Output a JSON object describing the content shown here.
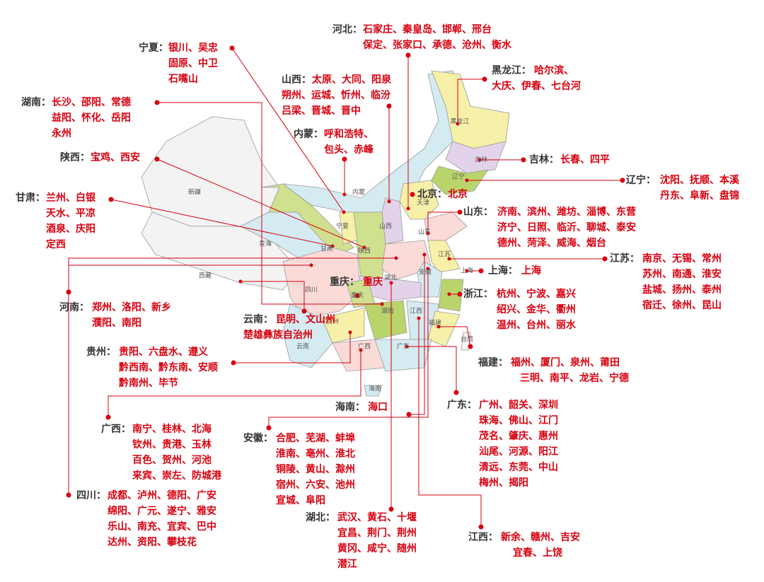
{
  "callouts": [
    {
      "label": "河北：",
      "lines": [
        "石家庄、秦皇岛、邯郸、邢台",
        "保定、张家口、承德、沧州、衡水"
      ]
    },
    {
      "label": "宁夏：",
      "lines": [
        "银川、吴忠",
        "固原、中卫",
        "石嘴山"
      ]
    },
    {
      "label": "山西：",
      "lines": [
        "太原、大同、阳泉",
        "朔州、运城、忻州、临汾",
        "吕梁、晋城、晋中"
      ]
    },
    {
      "label": "黑龙江：",
      "lines": [
        "哈尔滨、",
        "大庆、伊春、七台河"
      ]
    },
    {
      "label": "湖南：",
      "lines": [
        "长沙、邵阳、常德",
        "益阳、怀化、岳阳",
        "永州"
      ]
    },
    {
      "label": "内蒙：",
      "lines": [
        "呼和浩特、",
        "包头、赤峰"
      ]
    },
    {
      "label": "陕西：",
      "lines": [
        "宝鸡、西安"
      ]
    },
    {
      "label": "吉林：",
      "lines": [
        "长春、四平"
      ]
    },
    {
      "label": "辽宁：",
      "lines": [
        "沈阳、抚顺、本溪",
        "丹东、阜新、盘锦"
      ]
    },
    {
      "label": "北京：",
      "lines": [
        "北京"
      ]
    },
    {
      "label": "甘肃：",
      "lines": [
        "兰州、白银",
        "天水、平凉",
        "酒泉、庆阳",
        "定西"
      ]
    },
    {
      "label": "山东：",
      "lines": [
        "济南、滨州、潍坊、淄博、东营",
        "济宁、日照、临沂、聊城、泰安",
        "德州、菏泽、威海、烟台"
      ]
    },
    {
      "label": "江苏：",
      "lines": [
        "南京、无锡、常州",
        "苏州、南通、淮安",
        "盐城、扬州、泰州",
        "宿迁、徐州、昆山"
      ]
    },
    {
      "label": "上海：",
      "lines": [
        "上海"
      ]
    },
    {
      "label": "重庆：",
      "lines": [
        "重庆"
      ]
    },
    {
      "label": "浙江：",
      "lines": [
        "杭州、宁波、嘉兴",
        "绍兴、金华、衢州",
        "温州、台州、丽水"
      ]
    },
    {
      "label": "河南：",
      "lines": [
        "郑州、洛阳、新乡",
        "濮阳、南阳"
      ]
    },
    {
      "label": "云南：",
      "lines": [
        "昆明、文山州",
        "楚雄彝族自治州"
      ]
    },
    {
      "label": "贵州：",
      "lines": [
        "贵阳、六盘水、遵义",
        "黔西南、黔东南、安顺",
        "黔南州、毕节"
      ]
    },
    {
      "label": "福建：",
      "lines": [
        "福州、厦门、泉州、莆田",
        "三明、南平、龙岩、宁德"
      ]
    },
    {
      "label": "海南：",
      "lines": [
        "海口"
      ]
    },
    {
      "label": "广东：",
      "lines": [
        "广州、韶关、深圳",
        "珠海、佛山、江门",
        "茂名、肇庆、惠州",
        "汕尾、河源、阳江",
        "清远、东莞、中山",
        "梅州、揭阳"
      ]
    },
    {
      "label": "广西：",
      "lines": [
        "南宁、桂林、北海",
        "钦州、贵港、玉林",
        "百色、贺州、河池",
        "来宾、崇左、防城港"
      ]
    },
    {
      "label": "安徽：",
      "lines": [
        "合肥、芜湖、蚌埠",
        "淮南、亳州、淮北",
        "铜陵、黄山、滁州",
        "宿州、六安、池州",
        "宣城、阜阳"
      ]
    },
    {
      "label": "四川：",
      "lines": [
        "成都、泸州、德阳、广安",
        "绵阳、广元、遂宁、雅安",
        "乐山、南充、宜宾、巴中",
        "达州、资阳、攀枝花"
      ]
    },
    {
      "label": "湖北：",
      "lines": [
        "武汉、黄石、十堰",
        "宜昌、荆门、荆州",
        "黄冈、咸宁、随州",
        "潜江"
      ]
    },
    {
      "label": "江西：",
      "lines": [
        "新余、赣州、吉安",
        "宜春、上饶"
      ]
    }
  ],
  "map_labels": [
    "新疆",
    "西藏",
    "青海",
    "甘肃",
    "内蒙",
    "黑龙江",
    "吉林",
    "辽宁",
    "天津",
    "宁夏",
    "山西",
    "山东",
    "陕西",
    "江苏",
    "安徽",
    "上海",
    "湖北",
    "四川",
    "重庆",
    "湖南",
    "江西",
    "贵州",
    "福建",
    "云南",
    "广西",
    "广东",
    "台湾",
    "海南"
  ]
}
